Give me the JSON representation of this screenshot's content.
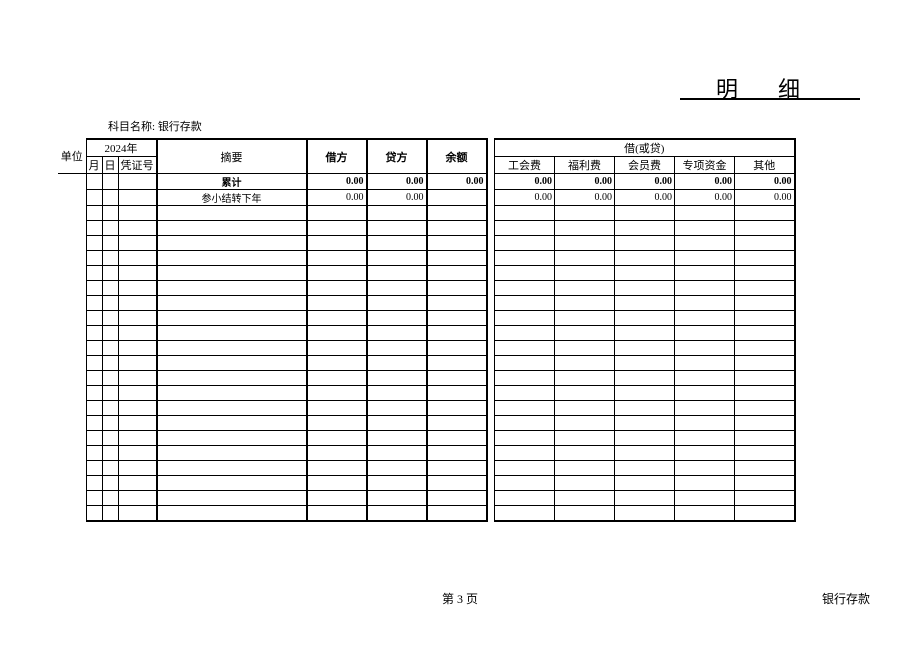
{
  "title": "明细",
  "subject_label": "科目名称:",
  "subject_name": "银行存款",
  "unit_label": "单位",
  "year": "2024年",
  "headers": {
    "month": "月",
    "day": "日",
    "voucher_no": "凭证号",
    "summary": "摘要",
    "debit": "借方",
    "credit": "贷方",
    "balance": "余额",
    "debit_or_credit": "借(或贷)",
    "sub1": "工会费",
    "sub2": "福利费",
    "sub3": "会员费",
    "sub4": "专项资金",
    "sub5": "其他"
  },
  "rows": [
    {
      "summary": "累计",
      "debit": "0.00",
      "credit": "0.00",
      "balance": "0.00",
      "s1": "0.00",
      "s2": "0.00",
      "s3": "0.00",
      "s4": "0.00",
      "s5": "0.00",
      "bold": true
    },
    {
      "summary": "参小结转下年",
      "debit": "0.00",
      "credit": "0.00",
      "balance": "",
      "s1": "0.00",
      "s2": "0.00",
      "s3": "0.00",
      "s4": "0.00",
      "s5": "0.00",
      "bold": false
    }
  ],
  "empty_row_count": 21,
  "page_label": "第 3 页",
  "footer_account": "银行存款",
  "colors": {
    "background": "#ffffff",
    "text": "#000000",
    "border": "#000000"
  }
}
